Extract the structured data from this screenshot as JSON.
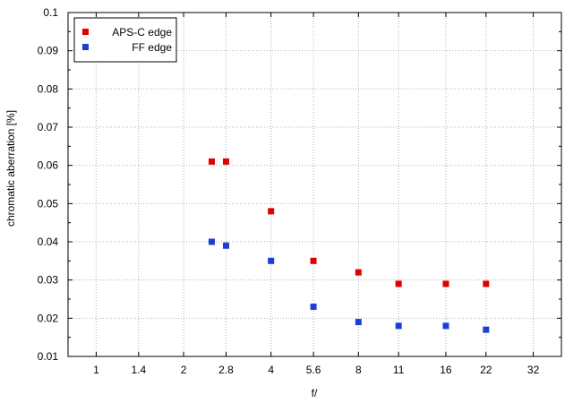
{
  "chart_data": {
    "type": "scatter",
    "xlabel": "f/",
    "ylabel": "chromatic aberration [%]",
    "x_scale": "log2",
    "x_ticks": [
      "1",
      "1.4",
      "2",
      "2.8",
      "4",
      "5.6",
      "8",
      "11",
      "16",
      "22",
      "32"
    ],
    "xlim": [
      0.8,
      40
    ],
    "ylim": [
      0.01,
      0.1
    ],
    "y_ticks": [
      "0.01",
      "0.02",
      "0.03",
      "0.04",
      "0.05",
      "0.06",
      "0.07",
      "0.08",
      "0.09",
      "0.1"
    ],
    "grid": true,
    "legend_position": "top-left",
    "series": [
      {
        "name": "APS-C edge",
        "color": "#e00000",
        "marker": "square",
        "points": [
          {
            "x": 2.5,
            "y": 0.061
          },
          {
            "x": 2.8,
            "y": 0.061
          },
          {
            "x": 4,
            "y": 0.048
          },
          {
            "x": 5.6,
            "y": 0.035
          },
          {
            "x": 8,
            "y": 0.032
          },
          {
            "x": 11,
            "y": 0.029
          },
          {
            "x": 16,
            "y": 0.029
          },
          {
            "x": 22,
            "y": 0.029
          }
        ]
      },
      {
        "name": "FF edge",
        "color": "#1a3fd6",
        "marker": "square",
        "points": [
          {
            "x": 2.5,
            "y": 0.04
          },
          {
            "x": 2.8,
            "y": 0.039
          },
          {
            "x": 4,
            "y": 0.035
          },
          {
            "x": 5.6,
            "y": 0.023
          },
          {
            "x": 8,
            "y": 0.019
          },
          {
            "x": 11,
            "y": 0.018
          },
          {
            "x": 16,
            "y": 0.018
          },
          {
            "x": 22,
            "y": 0.017
          }
        ]
      }
    ]
  }
}
